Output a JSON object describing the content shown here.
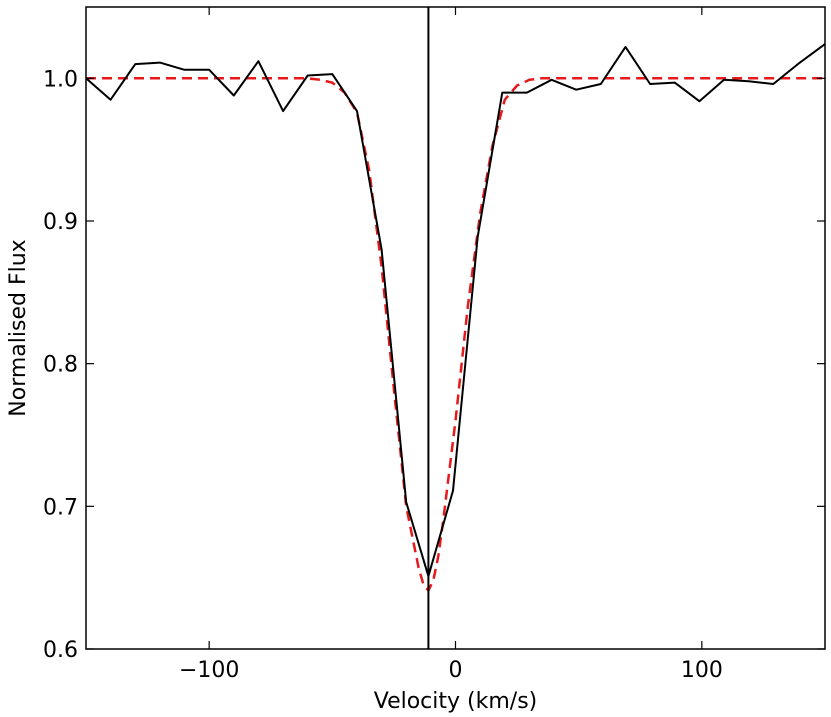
{
  "chart_data": {
    "type": "line",
    "title": "",
    "xlabel": "Velocity (km/s)",
    "ylabel": "Normalised Flux",
    "xlim": [
      -150,
      150
    ],
    "ylim": [
      0.6,
      1.05
    ],
    "grid": false,
    "legend": "none",
    "x_ticks": [
      -100,
      0,
      100
    ],
    "x_tick_labels": [
      "−100",
      "0",
      "100"
    ],
    "y_ticks": [
      0.6,
      0.7,
      0.8,
      0.9,
      1.0
    ],
    "y_tick_labels": [
      "0.6",
      "0.7",
      "0.8",
      "0.9",
      "1.0"
    ],
    "vline_x": -11,
    "colors": {
      "observed": "#000000",
      "model": "#e41a1c",
      "vline": "#000000"
    },
    "series": [
      {
        "style": "solid",
        "x": [
          -150,
          -140,
          -130,
          -120,
          -110,
          -100,
          -90,
          -80,
          -70,
          -60,
          -50,
          -40,
          -30,
          -20,
          -11,
          -1,
          9,
          19,
          29,
          39,
          49,
          59,
          69,
          79,
          89,
          99,
          109,
          119,
          129,
          139,
          150
        ],
        "y": [
          1.0,
          0.985,
          1.01,
          1.011,
          1.006,
          1.006,
          0.988,
          1.012,
          0.977,
          1.002,
          1.003,
          0.977,
          0.88,
          0.703,
          0.651,
          0.711,
          0.889,
          0.99,
          0.99,
          0.999,
          0.992,
          0.996,
          1.022,
          0.996,
          0.997,
          0.984,
          0.999,
          0.998,
          0.996,
          1.01,
          1.024
        ]
      },
      {
        "style": "dashed",
        "x": [
          -150,
          -100,
          -60,
          -55,
          -50,
          -45,
          -40,
          -35,
          -30,
          -25,
          -20,
          -15,
          -13,
          -11,
          -9,
          -7,
          -5,
          0,
          5,
          10,
          15,
          20,
          25,
          30,
          35,
          40,
          50,
          100,
          150
        ],
        "y": [
          1.0,
          1.0,
          1.0,
          0.999,
          0.997,
          0.99,
          0.976,
          0.935,
          0.868,
          0.782,
          0.7,
          0.657,
          0.645,
          0.641,
          0.648,
          0.665,
          0.69,
          0.76,
          0.84,
          0.905,
          0.953,
          0.985,
          0.995,
          0.999,
          1.0,
          1.0,
          1.0,
          1.0,
          1.0
        ]
      }
    ]
  }
}
